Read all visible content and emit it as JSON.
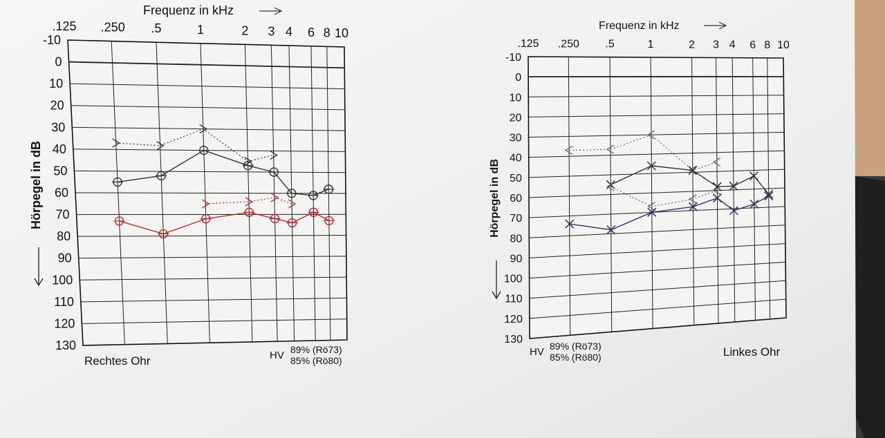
{
  "chart_data": [
    {
      "type": "line",
      "title": "Frequenz in kHz",
      "xlabel": "Frequenz in kHz",
      "ylabel": "Hörpegel in dB",
      "x_ticks": [
        ".125",
        ".250",
        ".5",
        "1",
        "2",
        "3",
        "4",
        "6",
        "8",
        "10"
      ],
      "y_ticks": [
        "-10",
        "0",
        "10",
        "20",
        "30",
        "40",
        "50",
        "60",
        "70",
        "80",
        "90",
        "100",
        "110",
        "120",
        "130"
      ],
      "ylim": [
        -10,
        130
      ],
      "y_inverted": true,
      "ear_label": "Rechtes Ohr",
      "hv_label": "HV",
      "hv_lines": [
        "89% (Rö73)",
        "85% (Rö80)"
      ],
      "series": [
        {
          "color": "#333333",
          "style": "dotted",
          "marker": ">",
          "x": [
            0.25,
            0.5,
            1,
            2,
            3
          ],
          "y": [
            37,
            38,
            30,
            45,
            42
          ]
        },
        {
          "color": "#333333",
          "style": "solid",
          "marker": "o",
          "x": [
            0.25,
            0.5,
            1,
            2,
            3,
            4,
            6,
            8
          ],
          "y": [
            55,
            52,
            40,
            47,
            50,
            60,
            61,
            58
          ]
        },
        {
          "color": "#b03030",
          "style": "dotted",
          "marker": ">",
          "x": [
            1,
            2,
            3,
            4
          ],
          "y": [
            65,
            64,
            62,
            65
          ]
        },
        {
          "color": "#b03030",
          "style": "solid",
          "marker": "o",
          "x": [
            0.25,
            0.5,
            1,
            2,
            3,
            4,
            6,
            8
          ],
          "y": [
            73,
            79,
            72,
            69,
            72,
            74,
            69,
            73
          ]
        }
      ]
    },
    {
      "type": "line",
      "title": "Frequenz in kHz",
      "xlabel": "Frequenz in kHz",
      "ylabel": "Hörpegel in dB",
      "x_ticks": [
        ".125",
        ".250",
        ".5",
        "1",
        "2",
        "3",
        "4",
        "6",
        "8",
        "10"
      ],
      "y_ticks": [
        "-10",
        "0",
        "10",
        "20",
        "30",
        "40",
        "50",
        "60",
        "70",
        "80",
        "90",
        "100",
        "110",
        "120",
        "130"
      ],
      "ylim": [
        -10,
        130
      ],
      "y_inverted": true,
      "ear_label": "Linkes Ohr",
      "hv_label": "HV",
      "hv_lines": [
        "89% (Rö73)",
        "85% (Rö80)"
      ],
      "series": [
        {
          "color": "#666666",
          "style": "dotted",
          "marker": "<",
          "x": [
            0.25,
            0.5,
            1,
            2,
            3
          ],
          "y": [
            37,
            37,
            30,
            49,
            45
          ]
        },
        {
          "color": "#333333",
          "style": "solid",
          "marker": "x",
          "x": [
            0.5,
            1,
            2,
            3,
            4,
            6,
            8
          ],
          "y": [
            55,
            46,
            49,
            58,
            58,
            53,
            63
          ]
        },
        {
          "color": "#666666",
          "style": "dotted",
          "marker": "<",
          "x": [
            0.5,
            1,
            2,
            3
          ],
          "y": [
            56,
            67,
            64,
            60
          ]
        },
        {
          "color": "#2a3560",
          "style": "solid",
          "marker": "x",
          "x": [
            0.25,
            0.5,
            1,
            2,
            3,
            4,
            6,
            8
          ],
          "y": [
            74,
            78,
            70,
            68,
            64,
            71,
            68,
            64
          ]
        }
      ]
    }
  ]
}
